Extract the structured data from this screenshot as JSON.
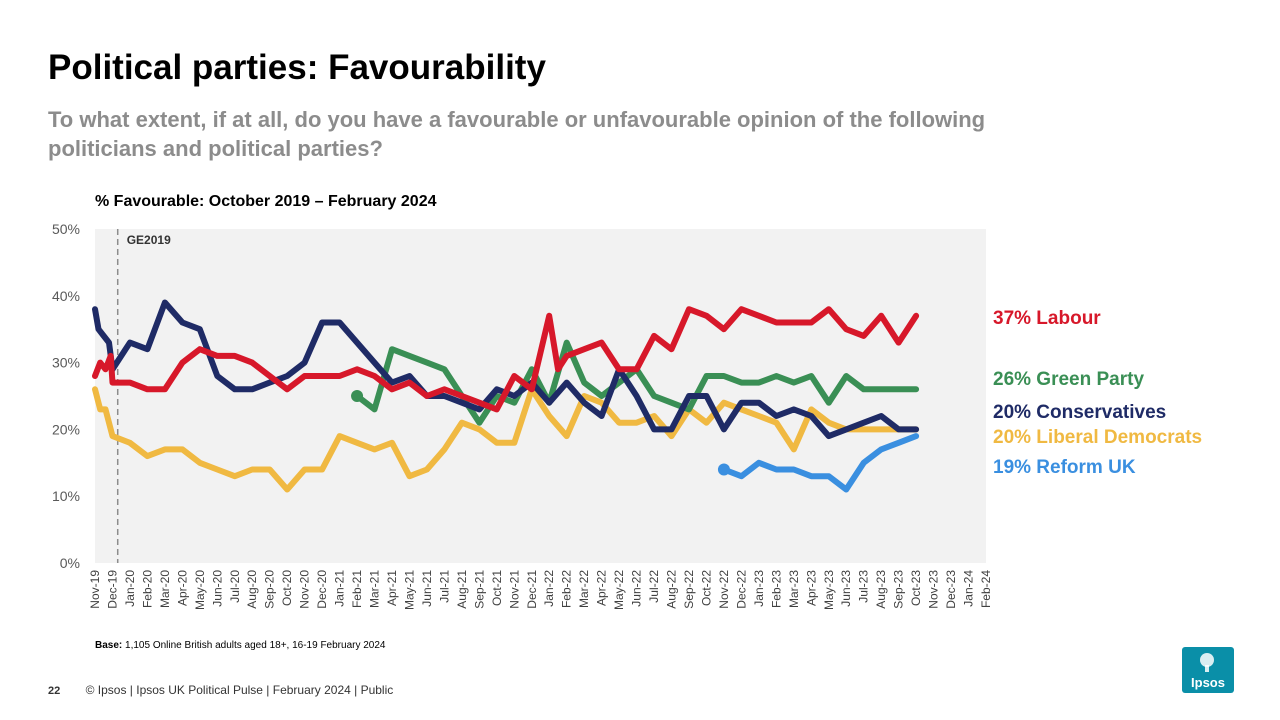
{
  "header": {
    "title": "Political parties: Favourability",
    "subtitle": "To what extent, if at all, do you have a favourable or unfavourable opinion of the following politicians and political parties?"
  },
  "chart_heading": "% Favourable: October 2019 – February 2024",
  "base_note": {
    "label": "Base:",
    "text": "1,105 Online British adults aged 18+, 16-19 February 2024"
  },
  "footer": {
    "page_number": "22",
    "text": "© Ipsos | Ipsos UK Political Pulse | February 2024 | Public"
  },
  "logo": {
    "text": "Ipsos"
  },
  "chart_data": {
    "type": "line",
    "title": "% Favourable: October 2019 – February 2024",
    "ylim": [
      0,
      50
    ],
    "y_ticks": [
      0,
      10,
      20,
      30,
      40,
      50
    ],
    "y_tick_labels": [
      "0%",
      "10%",
      "20%",
      "30%",
      "40%",
      "50%"
    ],
    "x_index_range": [
      0,
      51
    ],
    "x_ticks": [
      "Nov-19",
      "Dec-19",
      "Jan-20",
      "Feb-20",
      "Mar-20",
      "Apr-20",
      "May-20",
      "Jun-20",
      "Jul-20",
      "Aug-20",
      "Sep-20",
      "Oct-20",
      "Nov-20",
      "Dec-20",
      "Jan-21",
      "Feb-21",
      "Mar-21",
      "Apr-21",
      "May-21",
      "Jun-21",
      "Jul-21",
      "Aug-21",
      "Sep-21",
      "Oct-21",
      "Nov-21",
      "Dec-21",
      "Jan-22",
      "Feb-22",
      "Mar-22",
      "Apr-22",
      "May-22",
      "Jun-22",
      "Jul-22",
      "Aug-22",
      "Sep-22",
      "Oct-22",
      "Nov-22",
      "Dec-22",
      "Jan-23",
      "Feb-23",
      "Mar-23",
      "Apr-23",
      "May-23",
      "Jun-23",
      "Jul-23",
      "Aug-23",
      "Sep-23",
      "Oct-23",
      "Nov-23",
      "Dec-23",
      "Jan-24",
      "Feb-24"
    ],
    "annotation": {
      "label": "GE2019",
      "x": 1.3
    },
    "series": [
      {
        "name": "Labour",
        "color": "#d7182a",
        "end_label": "37% Labour",
        "points": [
          [
            0,
            28
          ],
          [
            0.3,
            30
          ],
          [
            0.6,
            29
          ],
          [
            0.9,
            31
          ],
          [
            1,
            27
          ],
          [
            2,
            27
          ],
          [
            3,
            26
          ],
          [
            4,
            26
          ],
          [
            5,
            30
          ],
          [
            6,
            32
          ],
          [
            7,
            31
          ],
          [
            8,
            31
          ],
          [
            9,
            30
          ],
          [
            10,
            28
          ],
          [
            11,
            26
          ],
          [
            12,
            28
          ],
          [
            13,
            28
          ],
          [
            14,
            28
          ],
          [
            15,
            29
          ],
          [
            16,
            28
          ],
          [
            17,
            26
          ],
          [
            18,
            27
          ],
          [
            19,
            25
          ],
          [
            20,
            26
          ],
          [
            21,
            25
          ],
          [
            22,
            24
          ],
          [
            23,
            23
          ],
          [
            24,
            28
          ],
          [
            25,
            26
          ],
          [
            26,
            37
          ],
          [
            26.5,
            29
          ],
          [
            27,
            31
          ],
          [
            28,
            32
          ],
          [
            29,
            33
          ],
          [
            30,
            29
          ],
          [
            31,
            29
          ],
          [
            32,
            34
          ],
          [
            33,
            32
          ],
          [
            34,
            38
          ],
          [
            35,
            37
          ],
          [
            36,
            35
          ],
          [
            37,
            38
          ],
          [
            38,
            37
          ],
          [
            39,
            36
          ],
          [
            40,
            36
          ],
          [
            41,
            36
          ],
          [
            42,
            38
          ],
          [
            43,
            35
          ],
          [
            44,
            34
          ],
          [
            45,
            37
          ],
          [
            46,
            33
          ],
          [
            47,
            37
          ]
        ]
      },
      {
        "name": "Conservatives",
        "color": "#1f2b66",
        "end_label": "20% Conservatives",
        "points": [
          [
            0,
            38
          ],
          [
            0.2,
            35
          ],
          [
            0.5,
            34
          ],
          [
            0.8,
            33
          ],
          [
            1,
            29
          ],
          [
            2,
            33
          ],
          [
            3,
            32
          ],
          [
            4,
            39
          ],
          [
            5,
            36
          ],
          [
            6,
            35
          ],
          [
            7,
            28
          ],
          [
            8,
            26
          ],
          [
            9,
            26
          ],
          [
            10,
            27
          ],
          [
            11,
            28
          ],
          [
            12,
            30
          ],
          [
            13,
            36
          ],
          [
            14,
            36
          ],
          [
            15,
            33
          ],
          [
            16,
            30
          ],
          [
            17,
            27
          ],
          [
            18,
            28
          ],
          [
            19,
            25
          ],
          [
            20,
            25
          ],
          [
            21,
            24
          ],
          [
            22,
            23
          ],
          [
            23,
            26
          ],
          [
            24,
            25
          ],
          [
            25,
            27
          ],
          [
            26,
            24
          ],
          [
            27,
            27
          ],
          [
            28,
            24
          ],
          [
            29,
            22
          ],
          [
            30,
            29
          ],
          [
            31,
            25
          ],
          [
            32,
            20
          ],
          [
            33,
            20
          ],
          [
            34,
            25
          ],
          [
            35,
            25
          ],
          [
            36,
            20
          ],
          [
            37,
            24
          ],
          [
            38,
            24
          ],
          [
            39,
            22
          ],
          [
            40,
            23
          ],
          [
            41,
            22
          ],
          [
            42,
            19
          ],
          [
            43,
            20
          ],
          [
            44,
            21
          ],
          [
            45,
            22
          ],
          [
            46,
            20
          ],
          [
            47,
            20
          ]
        ]
      },
      {
        "name": "Green Party",
        "color": "#3a8f55",
        "end_label": "26% Green Party",
        "points": [
          [
            15,
            25
          ],
          [
            16,
            23
          ],
          [
            17,
            32
          ],
          [
            18,
            31
          ],
          [
            19,
            30
          ],
          [
            20,
            29
          ],
          [
            21,
            25
          ],
          [
            22,
            21
          ],
          [
            23,
            25
          ],
          [
            24,
            24
          ],
          [
            25,
            29
          ],
          [
            26,
            24
          ],
          [
            27,
            33
          ],
          [
            28,
            27
          ],
          [
            29,
            25
          ],
          [
            30,
            27
          ],
          [
            31,
            29
          ],
          [
            32,
            25
          ],
          [
            33,
            24
          ],
          [
            34,
            23
          ],
          [
            35,
            28
          ],
          [
            36,
            28
          ],
          [
            37,
            27
          ],
          [
            38,
            27
          ],
          [
            39,
            28
          ],
          [
            40,
            27
          ],
          [
            41,
            28
          ],
          [
            42,
            24
          ],
          [
            43,
            28
          ],
          [
            44,
            26
          ],
          [
            45,
            26
          ],
          [
            46,
            26
          ],
          [
            47,
            26
          ]
        ]
      },
      {
        "name": "Liberal Democrats",
        "color": "#f0b942",
        "end_label": "20% Liberal Democrats",
        "points": [
          [
            0,
            26
          ],
          [
            0.3,
            23
          ],
          [
            0.6,
            23
          ],
          [
            1,
            19
          ],
          [
            2,
            18
          ],
          [
            3,
            16
          ],
          [
            4,
            17
          ],
          [
            5,
            17
          ],
          [
            6,
            15
          ],
          [
            7,
            14
          ],
          [
            8,
            13
          ],
          [
            9,
            14
          ],
          [
            10,
            14
          ],
          [
            11,
            11
          ],
          [
            12,
            14
          ],
          [
            13,
            14
          ],
          [
            14,
            19
          ],
          [
            15,
            18
          ],
          [
            16,
            17
          ],
          [
            17,
            18
          ],
          [
            18,
            13
          ],
          [
            19,
            14
          ],
          [
            20,
            17
          ],
          [
            21,
            21
          ],
          [
            22,
            20
          ],
          [
            23,
            18
          ],
          [
            24,
            18
          ],
          [
            25,
            26
          ],
          [
            26,
            22
          ],
          [
            27,
            19
          ],
          [
            28,
            25
          ],
          [
            29,
            24
          ],
          [
            30,
            21
          ],
          [
            31,
            21
          ],
          [
            32,
            22
          ],
          [
            33,
            19
          ],
          [
            34,
            23
          ],
          [
            35,
            21
          ],
          [
            36,
            24
          ],
          [
            37,
            23
          ],
          [
            38,
            22
          ],
          [
            39,
            21
          ],
          [
            40,
            17
          ],
          [
            41,
            23
          ],
          [
            42,
            21
          ],
          [
            43,
            20
          ],
          [
            44,
            20
          ],
          [
            45,
            20
          ],
          [
            46,
            20
          ],
          [
            47,
            20
          ]
        ]
      },
      {
        "name": "Reform UK",
        "color": "#3a8fe0",
        "end_label": "19% Reform UK",
        "points": [
          [
            36,
            14
          ],
          [
            37,
            13
          ],
          [
            38,
            15
          ],
          [
            39,
            14
          ],
          [
            40,
            14
          ],
          [
            41,
            13
          ],
          [
            42,
            13
          ],
          [
            43,
            11
          ],
          [
            44,
            15
          ],
          [
            45,
            17
          ],
          [
            46,
            18
          ],
          [
            47,
            19
          ]
        ]
      }
    ]
  }
}
